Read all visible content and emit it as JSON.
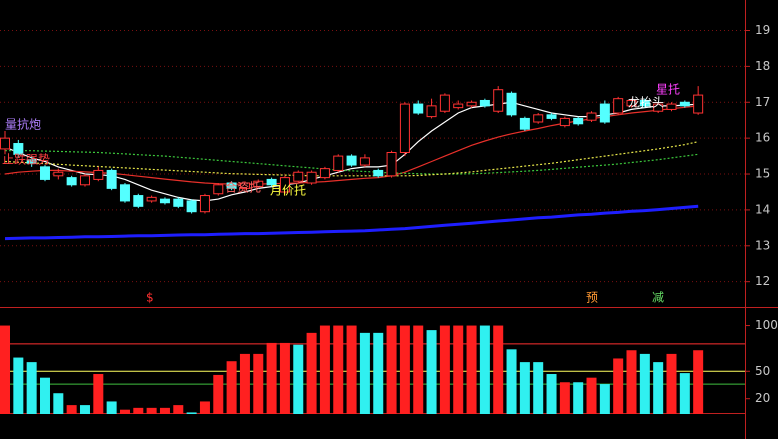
{
  "chart_data": [
    {
      "type": "candlestick",
      "up_color": "#ff3232",
      "down_color": "#54ffff",
      "grid": true,
      "ylim": [
        11.35,
        19.85
      ],
      "yticks": [
        12,
        13,
        14,
        15,
        16,
        17,
        18,
        19
      ],
      "ohlc": [
        [
          15.7,
          16.2,
          15.55,
          16.0
        ],
        [
          15.85,
          15.95,
          15.45,
          15.55
        ],
        [
          15.4,
          15.5,
          15.2,
          15.3
        ],
        [
          15.2,
          15.25,
          14.8,
          14.85
        ],
        [
          14.95,
          15.15,
          14.85,
          15.05
        ],
        [
          14.9,
          14.95,
          14.65,
          14.7
        ],
        [
          14.7,
          15.0,
          14.65,
          14.95
        ],
        [
          14.85,
          15.2,
          14.8,
          15.1
        ],
        [
          15.1,
          15.15,
          14.55,
          14.6
        ],
        [
          14.7,
          14.75,
          14.2,
          14.25
        ],
        [
          14.4,
          14.45,
          14.05,
          14.1
        ],
        [
          14.25,
          14.4,
          14.2,
          14.35
        ],
        [
          14.3,
          14.35,
          14.15,
          14.2
        ],
        [
          14.3,
          14.35,
          14.05,
          14.1
        ],
        [
          14.25,
          14.3,
          13.9,
          13.95
        ],
        [
          13.95,
          14.45,
          13.9,
          14.4
        ],
        [
          14.45,
          14.75,
          14.4,
          14.7
        ],
        [
          14.75,
          14.8,
          14.55,
          14.6
        ],
        [
          14.6,
          14.8,
          14.55,
          14.75
        ],
        [
          14.65,
          14.85,
          14.6,
          14.8
        ],
        [
          14.85,
          14.9,
          14.65,
          14.7
        ],
        [
          14.5,
          14.95,
          14.45,
          14.9
        ],
        [
          14.8,
          15.1,
          14.75,
          15.05
        ],
        [
          14.75,
          15.1,
          14.7,
          15.05
        ],
        [
          14.9,
          15.2,
          14.85,
          15.15
        ],
        [
          15.1,
          15.55,
          15.05,
          15.5
        ],
        [
          15.5,
          15.55,
          15.2,
          15.25
        ],
        [
          15.25,
          15.55,
          15.2,
          15.45
        ],
        [
          15.1,
          15.15,
          14.9,
          14.95
        ],
        [
          14.95,
          15.65,
          14.9,
          15.6
        ],
        [
          15.6,
          17.0,
          15.5,
          16.95
        ],
        [
          16.95,
          17.05,
          16.65,
          16.7
        ],
        [
          16.6,
          17.1,
          16.55,
          16.9
        ],
        [
          16.75,
          17.25,
          16.7,
          17.2
        ],
        [
          16.85,
          17.05,
          16.8,
          16.95
        ],
        [
          16.9,
          17.05,
          16.85,
          17.0
        ],
        [
          17.05,
          17.1,
          16.85,
          16.9
        ],
        [
          16.75,
          17.45,
          16.7,
          17.35
        ],
        [
          17.25,
          17.3,
          16.6,
          16.65
        ],
        [
          16.55,
          16.6,
          16.2,
          16.25
        ],
        [
          16.45,
          16.7,
          16.4,
          16.65
        ],
        [
          16.65,
          16.7,
          16.5,
          16.55
        ],
        [
          16.35,
          16.6,
          16.3,
          16.55
        ],
        [
          16.55,
          16.6,
          16.35,
          16.4
        ],
        [
          16.5,
          16.75,
          16.45,
          16.7
        ],
        [
          16.95,
          17.05,
          16.4,
          16.45
        ],
        [
          16.7,
          17.15,
          16.65,
          17.1
        ],
        [
          16.9,
          17.1,
          16.85,
          17.05
        ],
        [
          17.05,
          17.1,
          16.85,
          16.9
        ],
        [
          16.75,
          17.0,
          16.7,
          16.95
        ],
        [
          16.8,
          17.0,
          16.75,
          16.95
        ],
        [
          17.0,
          17.05,
          16.85,
          16.9
        ],
        [
          16.7,
          17.45,
          16.65,
          17.2
        ]
      ],
      "lines": [
        {
          "color": "#ffffff",
          "dashed": false,
          "values": [
            15.75,
            15.6,
            15.45,
            15.35,
            15.2,
            15.1,
            15.0,
            14.98,
            14.95,
            14.85,
            14.7,
            14.55,
            14.45,
            14.35,
            14.28,
            14.25,
            14.3,
            14.42,
            14.5,
            14.6,
            14.65,
            14.7,
            14.75,
            14.85,
            14.95,
            15.05,
            15.15,
            15.2,
            15.2,
            15.25,
            15.55,
            15.9,
            16.2,
            16.45,
            16.7,
            16.85,
            16.9,
            16.95,
            17.0,
            16.9,
            16.8,
            16.7,
            16.65,
            16.6,
            16.6,
            16.65,
            16.7,
            16.8,
            16.85,
            16.9,
            16.9,
            16.92,
            16.95
          ]
        },
        {
          "color": "#e8302a",
          "dashed": false,
          "values": [
            15.0,
            15.05,
            15.08,
            15.1,
            15.1,
            15.08,
            15.06,
            15.04,
            15.02,
            14.98,
            14.94,
            14.9,
            14.86,
            14.82,
            14.78,
            14.75,
            14.73,
            14.72,
            14.72,
            14.72,
            14.73,
            14.74,
            14.75,
            14.77,
            14.79,
            14.82,
            14.85,
            14.88,
            14.9,
            14.95,
            15.05,
            15.2,
            15.35,
            15.5,
            15.65,
            15.8,
            15.92,
            16.03,
            16.12,
            16.2,
            16.27,
            16.35,
            16.42,
            16.48,
            16.54,
            16.6,
            16.65,
            16.7,
            16.74,
            16.78,
            16.82,
            16.86,
            16.9
          ]
        },
        {
          "color": "#3cc83c",
          "dashed": true,
          "values": [
            15.65,
            15.65,
            15.65,
            15.64,
            15.63,
            15.62,
            15.61,
            15.6,
            15.58,
            15.56,
            15.54,
            15.52,
            15.5,
            15.47,
            15.44,
            15.41,
            15.38,
            15.35,
            15.32,
            15.29,
            15.26,
            15.23,
            15.2,
            15.17,
            15.14,
            15.11,
            15.09,
            15.07,
            15.05,
            15.03,
            15.02,
            15.01,
            15.0,
            15.0,
            15.0,
            15.01,
            15.02,
            15.04,
            15.06,
            15.08,
            15.1,
            15.13,
            15.16,
            15.19,
            15.22,
            15.25,
            15.28,
            15.32,
            15.36,
            15.4,
            15.45,
            15.5,
            15.55
          ]
        },
        {
          "color": "#e8e84a",
          "dashed": true,
          "values": [
            15.35,
            15.33,
            15.31,
            15.29,
            15.27,
            15.25,
            15.23,
            15.21,
            15.19,
            15.17,
            15.15,
            15.13,
            15.11,
            15.09,
            15.07,
            15.05,
            15.03,
            15.01,
            15.0,
            14.99,
            14.98,
            14.97,
            14.96,
            14.95,
            14.95,
            14.95,
            14.95,
            14.95,
            14.95,
            14.95,
            14.95,
            14.96,
            14.98,
            15.0,
            15.03,
            15.06,
            15.1,
            15.14,
            15.18,
            15.22,
            15.26,
            15.3,
            15.35,
            15.4,
            15.45,
            15.5,
            15.55,
            15.6,
            15.65,
            15.7,
            15.76,
            15.82,
            15.9
          ]
        },
        {
          "color": "#1e1eff",
          "dashed": false,
          "values": [
            13.2,
            13.21,
            13.22,
            13.22,
            13.23,
            13.24,
            13.25,
            13.25,
            13.26,
            13.27,
            13.28,
            13.28,
            13.29,
            13.3,
            13.31,
            13.31,
            13.32,
            13.33,
            13.34,
            13.34,
            13.35,
            13.36,
            13.37,
            13.38,
            13.39,
            13.4,
            13.41,
            13.42,
            13.44,
            13.46,
            13.48,
            13.51,
            13.54,
            13.57,
            13.6,
            13.63,
            13.66,
            13.69,
            13.72,
            13.75,
            13.78,
            13.8,
            13.83,
            13.86,
            13.88,
            13.91,
            13.93,
            13.96,
            13.98,
            14.01,
            14.04,
            14.07,
            14.1
          ]
        }
      ],
      "annotations": [
        {
          "text": "量抗炮",
          "color": "#b080ff"
        },
        {
          "text": "止跌强势",
          "color": "#ff4040"
        },
        {
          "text": "合资托",
          "color": "#ff6060"
        },
        {
          "text": "月价托",
          "color": "#ffff40"
        },
        {
          "text": "龙抬头",
          "color": "#ffffff"
        },
        {
          "text": "星托",
          "color": "#ff40ff"
        },
        {
          "text": "$",
          "color": "#ff3030"
        },
        {
          "text": "预",
          "color": "#ff9933"
        },
        {
          "text": "减",
          "color": "#66dd66"
        }
      ]
    },
    {
      "type": "bar",
      "ylim": [
        0,
        117
      ],
      "yticks": [
        20,
        50,
        100
      ],
      "values": [
        100,
        65,
        60,
        43,
        26,
        13,
        13,
        47,
        17,
        8,
        10,
        10,
        10,
        13,
        5,
        17,
        46,
        61,
        69,
        69,
        81,
        81,
        79,
        92,
        100,
        100,
        100,
        92,
        92,
        100,
        100,
        100,
        95,
        100,
        100,
        100,
        100,
        100,
        74,
        60,
        60,
        47,
        38,
        38,
        43,
        36,
        64,
        73,
        69,
        60,
        69,
        48,
        73
      ],
      "colors": [
        "#ff2020",
        "#30f0f0",
        "#30f0f0",
        "#30f0f0",
        "#30f0f0",
        "#ff2020",
        "#30f0f0",
        "#ff2020",
        "#30f0f0",
        "#ff2020",
        "#ff2020",
        "#ff2020",
        "#ff2020",
        "#ff2020",
        "#30f0f0",
        "#ff2020",
        "#ff2020",
        "#ff2020",
        "#ff2020",
        "#ff2020",
        "#ff2020",
        "#ff2020",
        "#30f0f0",
        "#ff2020",
        "#ff2020",
        "#ff2020",
        "#ff2020",
        "#30f0f0",
        "#30f0f0",
        "#ff2020",
        "#ff2020",
        "#ff2020",
        "#30f0f0",
        "#ff2020",
        "#ff2020",
        "#ff2020",
        "#30f0f0",
        "#ff2020",
        "#30f0f0",
        "#30f0f0",
        "#30f0f0",
        "#30f0f0",
        "#ff2020",
        "#30f0f0",
        "#ff2020",
        "#30f0f0",
        "#ff2020",
        "#ff2020",
        "#30f0f0",
        "#30f0f0",
        "#ff2020",
        "#30f0f0",
        "#ff2020"
      ],
      "hlines": [
        {
          "value": 80,
          "color": "#ff3030"
        },
        {
          "value": 50,
          "color": "#ffff60"
        },
        {
          "value": 36,
          "color": "#40c040"
        }
      ]
    }
  ]
}
